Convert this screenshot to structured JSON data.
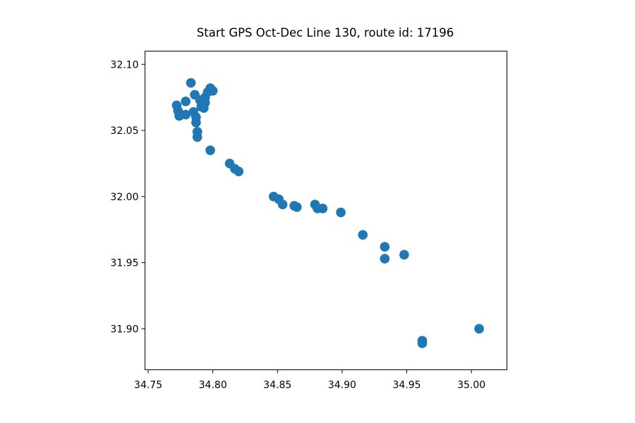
{
  "chart_data": {
    "type": "scatter",
    "title": "Start GPS Oct-Dec Line 130, route id: 17196",
    "xlabel": "",
    "ylabel": "",
    "xlim": [
      34.7475,
      35.0275
    ],
    "ylim": [
      31.869,
      32.11
    ],
    "xticks": [
      "34.75",
      "34.80",
      "34.85",
      "34.90",
      "34.95",
      "35.00"
    ],
    "yticks": [
      "31.90",
      "31.95",
      "32.00",
      "32.05",
      "32.10"
    ],
    "grid": false,
    "legend": null,
    "marker_color": "#1f77b4",
    "points": [
      {
        "x": 34.783,
        "y": 32.086
      },
      {
        "x": 34.786,
        "y": 32.077
      },
      {
        "x": 34.779,
        "y": 32.072
      },
      {
        "x": 34.772,
        "y": 32.069
      },
      {
        "x": 34.773,
        "y": 32.065
      },
      {
        "x": 34.774,
        "y": 32.061
      },
      {
        "x": 34.779,
        "y": 32.062
      },
      {
        "x": 34.785,
        "y": 32.064
      },
      {
        "x": 34.787,
        "y": 32.06
      },
      {
        "x": 34.787,
        "y": 32.056
      },
      {
        "x": 34.788,
        "y": 32.049
      },
      {
        "x": 34.788,
        "y": 32.045
      },
      {
        "x": 34.798,
        "y": 32.035
      },
      {
        "x": 34.793,
        "y": 32.067
      },
      {
        "x": 34.794,
        "y": 32.071
      },
      {
        "x": 34.794,
        "y": 32.075
      },
      {
        "x": 34.796,
        "y": 32.079
      },
      {
        "x": 34.798,
        "y": 32.082
      },
      {
        "x": 34.8,
        "y": 32.08
      },
      {
        "x": 34.791,
        "y": 32.068
      },
      {
        "x": 34.79,
        "y": 32.073
      },
      {
        "x": 34.813,
        "y": 32.025
      },
      {
        "x": 34.817,
        "y": 32.021
      },
      {
        "x": 34.82,
        "y": 32.019
      },
      {
        "x": 34.847,
        "y": 32.0
      },
      {
        "x": 34.851,
        "y": 31.998
      },
      {
        "x": 34.854,
        "y": 31.994
      },
      {
        "x": 34.863,
        "y": 31.993
      },
      {
        "x": 34.865,
        "y": 31.992
      },
      {
        "x": 34.879,
        "y": 31.994
      },
      {
        "x": 34.881,
        "y": 31.991
      },
      {
        "x": 34.885,
        "y": 31.991
      },
      {
        "x": 34.899,
        "y": 31.988
      },
      {
        "x": 34.916,
        "y": 31.971
      },
      {
        "x": 34.933,
        "y": 31.962
      },
      {
        "x": 34.933,
        "y": 31.953
      },
      {
        "x": 34.948,
        "y": 31.956
      },
      {
        "x": 34.962,
        "y": 31.891
      },
      {
        "x": 34.962,
        "y": 31.889
      },
      {
        "x": 35.006,
        "y": 31.9
      }
    ]
  }
}
